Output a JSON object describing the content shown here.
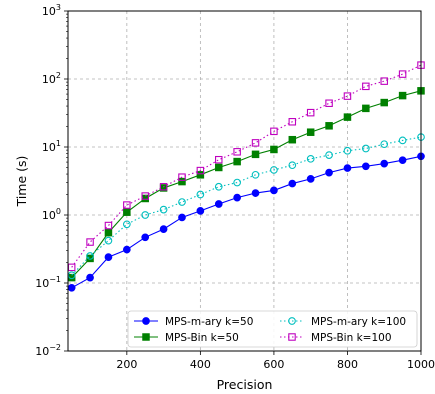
{
  "chart_data": {
    "type": "line",
    "xlabel": "Precision",
    "ylabel": "Time (s)",
    "xlim": [
      40,
      1000
    ],
    "ylim": [
      0.01,
      1000
    ],
    "yscale": "log",
    "x_ticks": [
      200,
      400,
      600,
      800,
      1000
    ],
    "x_tick_labels": [
      "200",
      "400",
      "600",
      "800",
      "1000"
    ],
    "y_ticks": [
      0.01,
      0.1,
      1,
      10,
      100,
      1000
    ],
    "y_tick_labels": [
      {
        "base": "10",
        "exp": "−2"
      },
      {
        "base": "10",
        "exp": "−1"
      },
      {
        "base": "10",
        "exp": "0"
      },
      {
        "base": "10",
        "exp": "1"
      },
      {
        "base": "10",
        "exp": "2"
      },
      {
        "base": "10",
        "exp": "3"
      }
    ],
    "grid": true,
    "legend_position": "lower-right",
    "x": [
      50,
      100,
      150,
      200,
      250,
      300,
      350,
      400,
      450,
      500,
      550,
      600,
      650,
      700,
      750,
      800,
      850,
      900,
      950,
      1000
    ],
    "series": [
      {
        "name": "MPS-m-ary k=50",
        "color": "#0000ff",
        "line": "solid",
        "marker": "circle",
        "filled": true,
        "values": [
          0.085,
          0.12,
          0.24,
          0.31,
          0.47,
          0.62,
          0.92,
          1.15,
          1.45,
          1.8,
          2.1,
          2.3,
          2.9,
          3.4,
          4.2,
          4.9,
          5.2,
          5.7,
          6.4,
          7.3
        ]
      },
      {
        "name": "MPS-Bin k=50",
        "color": "#008000",
        "line": "solid",
        "marker": "square",
        "filled": true,
        "values": [
          0.12,
          0.23,
          0.55,
          1.1,
          1.75,
          2.5,
          3.1,
          3.9,
          5.0,
          6.1,
          7.8,
          9.2,
          12.8,
          16.5,
          20.5,
          27.5,
          37,
          45,
          57,
          67
        ]
      },
      {
        "name": "MPS-m-ary k=100",
        "color": "#00bfbf",
        "line": "dotted",
        "marker": "circle",
        "filled": false,
        "values": [
          0.13,
          0.25,
          0.42,
          0.73,
          1.0,
          1.2,
          1.55,
          2.0,
          2.6,
          3.0,
          3.9,
          4.6,
          5.4,
          6.7,
          7.6,
          8.8,
          9.5,
          11.0,
          12.5,
          14.0
        ]
      },
      {
        "name": "MPS-Bin k=100",
        "color": "#bf00bf",
        "line": "dotted",
        "marker": "square",
        "filled": false,
        "values": [
          0.17,
          0.4,
          0.7,
          1.4,
          1.9,
          2.6,
          3.6,
          4.5,
          6.5,
          8.5,
          11.5,
          17,
          23.5,
          32,
          44,
          56,
          78,
          93,
          118,
          160
        ]
      }
    ]
  }
}
